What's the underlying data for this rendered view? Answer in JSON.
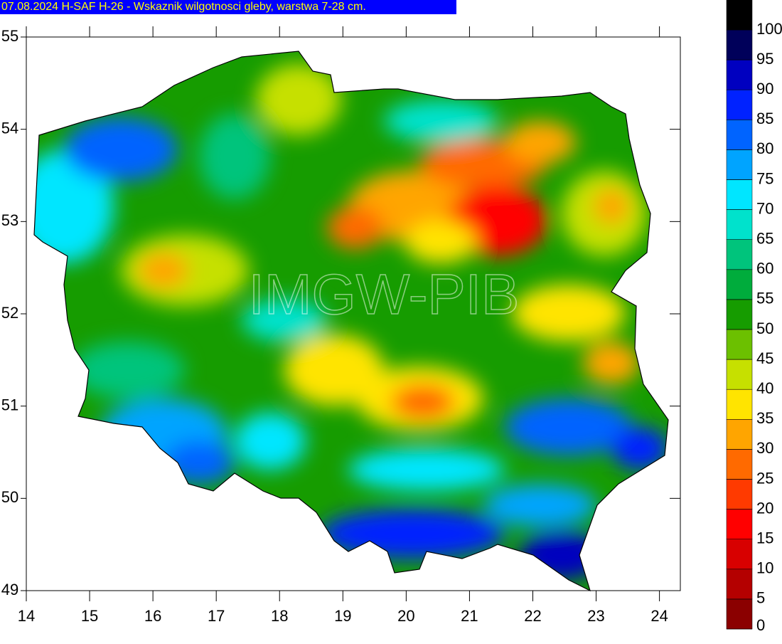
{
  "title": "07.08.2024 H-SAF H-26 - Wskaznik wilgotnosci gleby, warstwa 7-28 cm.",
  "watermark": "IMGW-PIB",
  "map": {
    "xlim": [
      14,
      24.33
    ],
    "ylim": [
      49,
      55
    ],
    "xticks": [
      14,
      15,
      16,
      17,
      18,
      19,
      20,
      21,
      22,
      23,
      24
    ],
    "yticks": [
      49,
      50,
      51,
      52,
      53,
      54,
      55
    ]
  },
  "colorbar": {
    "ticks": [
      0,
      5,
      10,
      15,
      20,
      25,
      30,
      35,
      40,
      45,
      50,
      55,
      60,
      65,
      70,
      75,
      80,
      85,
      90,
      95,
      100
    ],
    "colors": [
      "#8b0000",
      "#b40000",
      "#d80000",
      "#ff0000",
      "#ff3a00",
      "#ff6a00",
      "#ffa500",
      "#ffe400",
      "#c6e000",
      "#6cc000",
      "#169c00",
      "#00ac3c",
      "#00c47c",
      "#00e2cc",
      "#00e6ff",
      "#00a4ff",
      "#0064ff",
      "#0022ff",
      "#0000c0",
      "#00005a",
      "#000000"
    ]
  }
}
